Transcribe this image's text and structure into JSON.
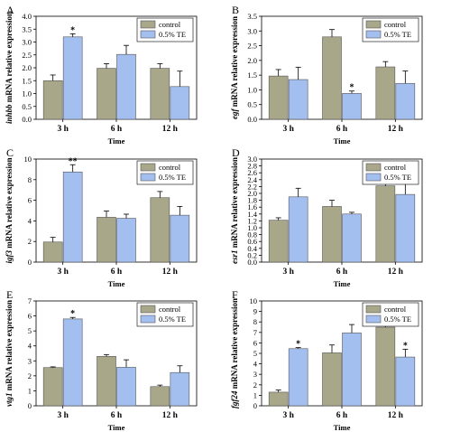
{
  "chart_data": [
    {
      "panel": "A",
      "type": "bar",
      "ylabel": {
        "italic": "inhbb",
        "rest": " mRNA relative expression"
      },
      "xlabel": "Time",
      "categories": [
        "3 h",
        "6 h",
        "12 h"
      ],
      "ylim": [
        0,
        4
      ],
      "yticks": [
        0.0,
        0.5,
        1.0,
        1.5,
        2.0,
        2.5,
        3.0,
        3.5,
        4.0
      ],
      "series": [
        {
          "name": "control",
          "values": [
            1.5,
            1.98,
            1.98
          ],
          "errors": [
            0.22,
            0.18,
            0.18
          ]
        },
        {
          "name": "0.5% TE",
          "values": [
            3.2,
            2.52,
            1.27
          ],
          "errors": [
            0.12,
            0.35,
            0.6
          ]
        }
      ],
      "annotations": [
        {
          "category": 0,
          "series": 1,
          "text": "*"
        }
      ]
    },
    {
      "panel": "B",
      "type": "bar",
      "ylabel": {
        "italic": "egf",
        "rest": " mRNA relative expression"
      },
      "xlabel": "Time",
      "categories": [
        "3 h",
        "6 h",
        "12 h"
      ],
      "ylim": [
        0,
        3.5
      ],
      "yticks": [
        0.0,
        0.5,
        1.0,
        1.5,
        2.0,
        2.5,
        3.0,
        3.5
      ],
      "series": [
        {
          "name": "control",
          "values": [
            1.47,
            2.8,
            1.78
          ],
          "errors": [
            0.22,
            0.25,
            0.18
          ]
        },
        {
          "name": "0.5% TE",
          "values": [
            1.35,
            0.88,
            1.22
          ],
          "errors": [
            0.42,
            0.08,
            0.42
          ]
        }
      ],
      "annotations": [
        {
          "category": 1,
          "series": 1,
          "text": "*"
        }
      ]
    },
    {
      "panel": "C",
      "type": "bar",
      "ylabel": {
        "italic": "igf3",
        "rest": " mRNA relative expression"
      },
      "xlabel": "Time",
      "categories": [
        "3 h",
        "6 h",
        "12 h"
      ],
      "ylim": [
        0,
        10
      ],
      "yticks": [
        0,
        2,
        4,
        6,
        8,
        10
      ],
      "series": [
        {
          "name": "control",
          "values": [
            1.95,
            4.35,
            6.25
          ],
          "errors": [
            0.45,
            0.6,
            0.6
          ]
        },
        {
          "name": "0.5% TE",
          "values": [
            8.75,
            4.25,
            4.55
          ],
          "errors": [
            0.7,
            0.4,
            0.85
          ]
        }
      ],
      "annotations": [
        {
          "category": 0,
          "series": 1,
          "text": "**"
        }
      ]
    },
    {
      "panel": "D",
      "type": "bar",
      "ylabel": {
        "italic": "esr1",
        "rest": " mRNA relative expression"
      },
      "xlabel": "Time",
      "categories": [
        "3 h",
        "6 h",
        "12 h"
      ],
      "ylim": [
        0,
        3.0
      ],
      "yticks": [
        0.0,
        0.2,
        0.4,
        0.6,
        0.8,
        1.0,
        1.2,
        1.4,
        1.6,
        1.8,
        2.0,
        2.2,
        2.4,
        2.6,
        2.8,
        3.0
      ],
      "series": [
        {
          "name": "control",
          "values": [
            1.22,
            1.62,
            2.22
          ],
          "errors": [
            0.07,
            0.18,
            0.25
          ]
        },
        {
          "name": "0.5% TE",
          "values": [
            1.9,
            1.4,
            1.97
          ],
          "errors": [
            0.25,
            0.05,
            0.5
          ]
        }
      ],
      "annotations": []
    },
    {
      "panel": "E",
      "type": "bar",
      "ylabel": {
        "italic": "vtg1",
        "rest": " mRNA relative expression"
      },
      "xlabel": "Time",
      "categories": [
        "3 h",
        "6 h",
        "12 h"
      ],
      "ylim": [
        0,
        7
      ],
      "yticks": [
        0,
        1,
        2,
        3,
        4,
        5,
        6,
        7
      ],
      "series": [
        {
          "name": "control",
          "values": [
            2.55,
            3.3,
            1.28
          ],
          "errors": [
            0.05,
            0.12,
            0.1
          ]
        },
        {
          "name": "0.5% TE",
          "values": [
            5.8,
            2.57,
            2.22
          ],
          "errors": [
            0.1,
            0.5,
            0.45
          ]
        }
      ],
      "annotations": [
        {
          "category": 0,
          "series": 1,
          "text": "*"
        }
      ]
    },
    {
      "panel": "F",
      "type": "bar",
      "ylabel": {
        "italic": "fgf24",
        "rest": " mRNA relative expression"
      },
      "xlabel": "Time",
      "categories": [
        "3 h",
        "6 h",
        "12 h"
      ],
      "ylim": [
        0,
        10
      ],
      "yticks": [
        0,
        1,
        2,
        3,
        4,
        5,
        6,
        7,
        8,
        9,
        10
      ],
      "series": [
        {
          "name": "control",
          "values": [
            1.3,
            5.05,
            7.5
          ],
          "errors": [
            0.2,
            0.75,
            0.8
          ]
        },
        {
          "name": "0.5% TE",
          "values": [
            5.45,
            6.95,
            4.65
          ],
          "errors": [
            0.1,
            0.8,
            0.75
          ]
        }
      ],
      "annotations": [
        {
          "category": 0,
          "series": 1,
          "text": "*"
        },
        {
          "category": 2,
          "series": 1,
          "text": "*"
        }
      ]
    }
  ],
  "colors": {
    "control": "#a9a78a",
    "treated": "#a3bff0"
  }
}
